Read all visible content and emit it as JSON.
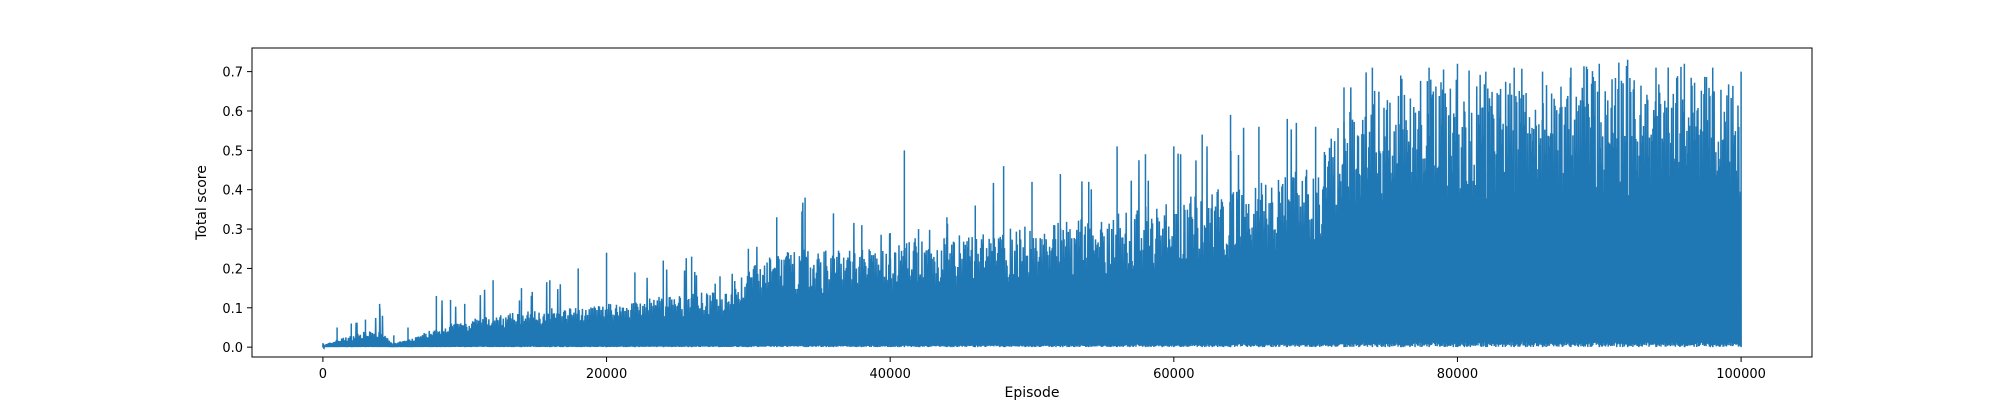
{
  "chart_data": {
    "type": "line",
    "title": "",
    "xlabel": "Episode",
    "ylabel": "Total score",
    "xlim": [
      -5000,
      105000
    ],
    "ylim": [
      -0.025,
      0.76
    ],
    "x_ticks": [
      0,
      20000,
      40000,
      60000,
      80000,
      100000
    ],
    "x_tick_labels": [
      "0",
      "20000",
      "40000",
      "60000",
      "80000",
      "100000"
    ],
    "y_ticks": [
      0.0,
      0.1,
      0.2,
      0.3,
      0.4,
      0.5,
      0.6,
      0.7
    ],
    "y_tick_labels": [
      "0.0",
      "0.1",
      "0.2",
      "0.3",
      "0.4",
      "0.5",
      "0.6",
      "0.7"
    ],
    "grid": false,
    "legend": "none",
    "series_color": "#1f77b4",
    "series": [
      {
        "x": [
          0,
          1000,
          2000,
          3000,
          4000,
          5000,
          6000,
          8000,
          9000,
          10000,
          12000,
          14000,
          16000,
          18000,
          20000,
          22000,
          24000,
          26000,
          28000,
          30000,
          32000,
          34000,
          36000,
          38000,
          40000,
          41000,
          42000,
          44000,
          46000,
          48000,
          50000,
          52000,
          54000,
          56000,
          58000,
          60000,
          62000,
          64000,
          66000,
          68000,
          70000,
          72000,
          74000,
          76000,
          78000,
          80000,
          82000,
          84000,
          86000,
          88000,
          90000,
          92000,
          94000,
          96000,
          98000,
          100000
        ],
        "envelope_max": [
          0.01,
          0.05,
          0.06,
          0.07,
          0.11,
          0.03,
          0.05,
          0.13,
          0.12,
          0.11,
          0.17,
          0.15,
          0.17,
          0.2,
          0.24,
          0.19,
          0.22,
          0.23,
          0.18,
          0.25,
          0.33,
          0.38,
          0.34,
          0.31,
          0.29,
          0.5,
          0.3,
          0.33,
          0.36,
          0.46,
          0.42,
          0.44,
          0.42,
          0.51,
          0.49,
          0.51,
          0.54,
          0.59,
          0.56,
          0.58,
          0.56,
          0.66,
          0.71,
          0.69,
          0.71,
          0.72,
          0.7,
          0.71,
          0.7,
          0.71,
          0.72,
          0.73,
          0.71,
          0.72,
          0.71,
          0.7
        ],
        "envelope_typical": [
          0.005,
          0.02,
          0.03,
          0.04,
          0.04,
          0.01,
          0.02,
          0.05,
          0.06,
          0.07,
          0.08,
          0.09,
          0.1,
          0.1,
          0.11,
          0.12,
          0.13,
          0.14,
          0.14,
          0.2,
          0.24,
          0.25,
          0.25,
          0.26,
          0.25,
          0.27,
          0.28,
          0.28,
          0.29,
          0.3,
          0.31,
          0.32,
          0.33,
          0.34,
          0.36,
          0.38,
          0.4,
          0.41,
          0.43,
          0.44,
          0.46,
          0.6,
          0.67,
          0.67,
          0.68,
          0.68,
          0.68,
          0.68,
          0.69,
          0.69,
          0.69,
          0.69,
          0.69,
          0.69,
          0.69,
          0.68
        ],
        "envelope_min": [
          0.0,
          0.0,
          0.0,
          0.0,
          0.0,
          0.0,
          0.0,
          0.0,
          0.0,
          0.0,
          0.0,
          0.0,
          0.0,
          0.0,
          0.0,
          0.0,
          0.0,
          0.0,
          0.0,
          0.0,
          0.0,
          0.0,
          0.0,
          0.0,
          0.0,
          0.0,
          0.0,
          0.0,
          0.0,
          0.0,
          0.0,
          0.0,
          0.0,
          0.0,
          0.0,
          0.0,
          0.0,
          0.0,
          0.0,
          0.0,
          0.0,
          0.0,
          0.0,
          0.0,
          0.0,
          0.0,
          0.0,
          0.0,
          0.0,
          0.0,
          0.0,
          0.0,
          0.0,
          0.0,
          0.0,
          0.0
        ]
      }
    ]
  }
}
